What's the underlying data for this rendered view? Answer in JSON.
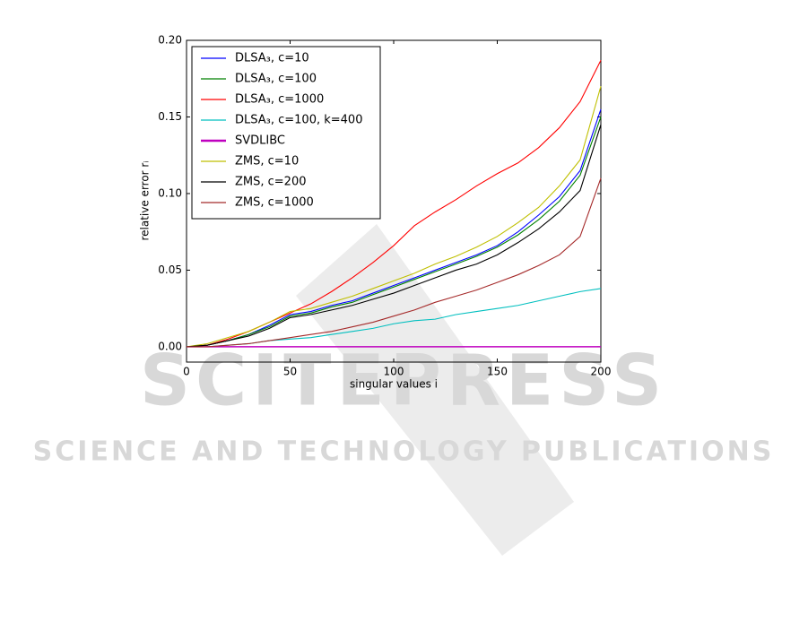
{
  "chart_data": {
    "type": "line",
    "xlabel": "singular values i",
    "ylabel": "relative error rᵢ",
    "watermark": [
      "SCITEPRESS",
      "SCIENCE AND TECHNOLOGY PUBLICATIONS"
    ],
    "x": [
      0,
      10,
      20,
      30,
      40,
      50,
      60,
      70,
      80,
      90,
      100,
      110,
      120,
      130,
      140,
      150,
      160,
      170,
      180,
      190,
      200
    ],
    "xlim": [
      0,
      200
    ],
    "xticks": [
      0,
      50,
      100,
      150,
      200
    ],
    "ylim": [
      -0.01,
      0.2
    ],
    "yticks": [
      {
        "value": 0,
        "label": "0.00"
      },
      {
        "value": 0.05,
        "label": "0.05"
      },
      {
        "value": 0.1,
        "label": "0.10"
      },
      {
        "value": 0.15,
        "label": "0.15"
      },
      {
        "value": 0.2,
        "label": "0.20"
      }
    ],
    "legend": "upper left",
    "series": [
      {
        "name": "DLSA₃, c=10",
        "color": "#0000ff",
        "values": [
          0,
          0.001,
          0.004,
          0.008,
          0.014,
          0.021,
          0.023,
          0.027,
          0.03,
          0.035,
          0.04,
          0.045,
          0.05,
          0.055,
          0.06,
          0.066,
          0.075,
          0.086,
          0.098,
          0.115,
          0.155
        ]
      },
      {
        "name": "DLSA₃, c=100",
        "color": "#008000",
        "values": [
          0,
          0.001,
          0.004,
          0.008,
          0.013,
          0.02,
          0.022,
          0.026,
          0.029,
          0.034,
          0.039,
          0.044,
          0.049,
          0.054,
          0.059,
          0.065,
          0.073,
          0.083,
          0.095,
          0.112,
          0.15
        ]
      },
      {
        "name": "DLSA₃, c=1000",
        "color": "#ff0000",
        "values": [
          0,
          0.001,
          0.005,
          0.01,
          0.016,
          0.022,
          0.028,
          0.036,
          0.045,
          0.055,
          0.066,
          0.079,
          0.088,
          0.096,
          0.105,
          0.113,
          0.12,
          0.13,
          0.143,
          0.16,
          0.187
        ]
      },
      {
        "name": "DLSA₃, c=100, k=400",
        "color": "#00bfbf",
        "values": [
          0,
          0,
          0.001,
          0.002,
          0.004,
          0.005,
          0.006,
          0.008,
          0.01,
          0.012,
          0.015,
          0.017,
          0.018,
          0.021,
          0.023,
          0.025,
          0.027,
          0.03,
          0.033,
          0.036,
          0.038
        ]
      },
      {
        "name": "SVDLIBC",
        "color": "#bf00bf",
        "values": [
          0,
          0,
          0,
          0,
          0,
          0,
          0,
          0,
          0,
          0,
          0,
          0,
          0,
          0,
          0,
          0,
          0,
          0,
          0,
          0,
          0
        ]
      },
      {
        "name": "ZMS, c=10",
        "color": "#bfbf00",
        "values": [
          0,
          0.002,
          0.006,
          0.01,
          0.016,
          0.023,
          0.025,
          0.029,
          0.033,
          0.038,
          0.043,
          0.048,
          0.054,
          0.059,
          0.065,
          0.072,
          0.081,
          0.091,
          0.105,
          0.122,
          0.17
        ]
      },
      {
        "name": "ZMS, c=200",
        "color": "#000000",
        "values": [
          0,
          0.001,
          0.004,
          0.007,
          0.012,
          0.019,
          0.021,
          0.024,
          0.027,
          0.031,
          0.035,
          0.04,
          0.045,
          0.05,
          0.054,
          0.06,
          0.068,
          0.077,
          0.088,
          0.102,
          0.145
        ]
      },
      {
        "name": "ZMS, c=1000",
        "color": "#a52a2a",
        "values": [
          0,
          0,
          0.001,
          0.002,
          0.004,
          0.006,
          0.008,
          0.01,
          0.013,
          0.016,
          0.02,
          0.024,
          0.029,
          0.033,
          0.037,
          0.042,
          0.047,
          0.053,
          0.06,
          0.072,
          0.11
        ]
      }
    ]
  }
}
